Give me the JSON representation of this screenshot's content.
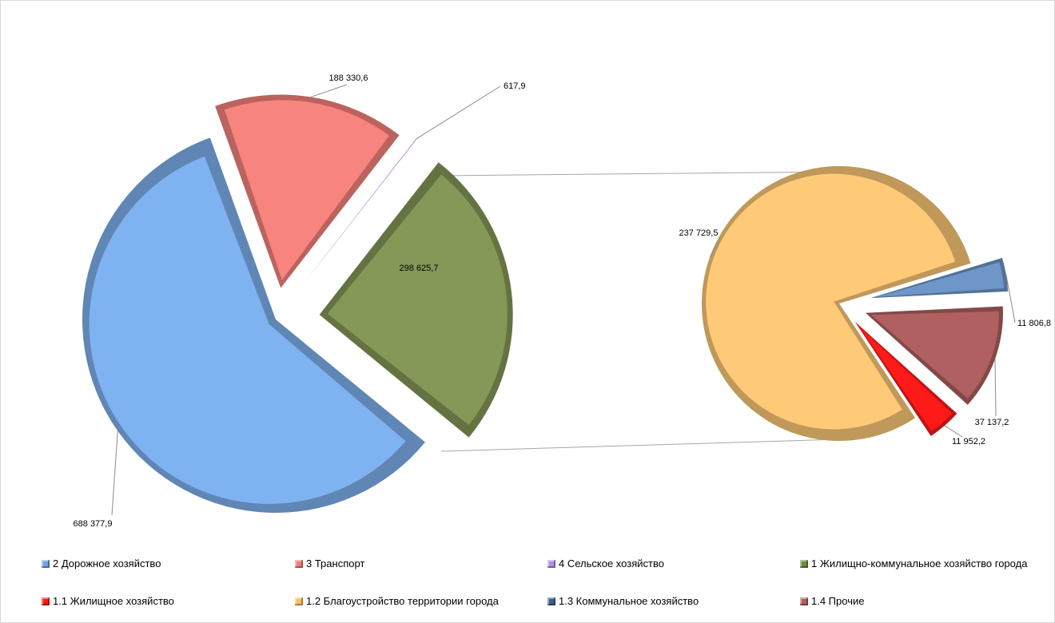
{
  "chart_data": {
    "type": "pie",
    "subtype": "pie-of-pie, exploded 3D",
    "main_pie": [
      {
        "name": "2 Дорожное хозяйство",
        "value": 688377.9,
        "label": "688 377,9",
        "color": "#7fb2f0"
      },
      {
        "name": "3 Транспорт",
        "value": 188330.6,
        "label": "188 330,6",
        "color": "#f8847f"
      },
      {
        "name": "4 Сельское хозяйство",
        "value": 617.9,
        "label": "617,9",
        "color": "#b48fe0"
      },
      {
        "name": "1 Жилищно-коммунальное хозяйство города",
        "value": 298625.7,
        "label": "298 625,7",
        "color": "#869858"
      }
    ],
    "secondary_pie": [
      {
        "name": "1.1 Жилищное хозяйство",
        "value": 11952.2,
        "label": "11 952,2",
        "color": "#ff1a1a"
      },
      {
        "name": "1.2 Благоустройство территории города",
        "value": 237729.5,
        "label": "237 729,5",
        "color": "#ffca78"
      },
      {
        "name": "1.3 Коммунальное хозяйство",
        "value": 11806.8,
        "label": "11 806,8",
        "color": "#6f96c8"
      },
      {
        "name": "1.4 Прочие",
        "value": 37137.2,
        "label": "37 137,2",
        "color": "#b06060"
      }
    ],
    "legend_position": "bottom"
  },
  "legend": [
    {
      "label": "2 Дорожное хозяйство",
      "color": "#6fa3e6"
    },
    {
      "label": "3 Транспорт",
      "color": "#f27c78"
    },
    {
      "label": "4 Сельское хозяйство",
      "color": "#b48fe0"
    },
    {
      "label": "1 Жилищно-коммунальное хозяйство города",
      "color": "#6f8a3c"
    },
    {
      "label": "1.1 Жилищное хозяйство",
      "color": "#ff1a1a"
    },
    {
      "label": "1.2 Благоустройство территории города",
      "color": "#ffbf5c"
    },
    {
      "label": "1.3 Коммунальное хозяйство",
      "color": "#3d5f8c"
    },
    {
      "label": "1.4 Прочие",
      "color": "#b06060"
    }
  ]
}
